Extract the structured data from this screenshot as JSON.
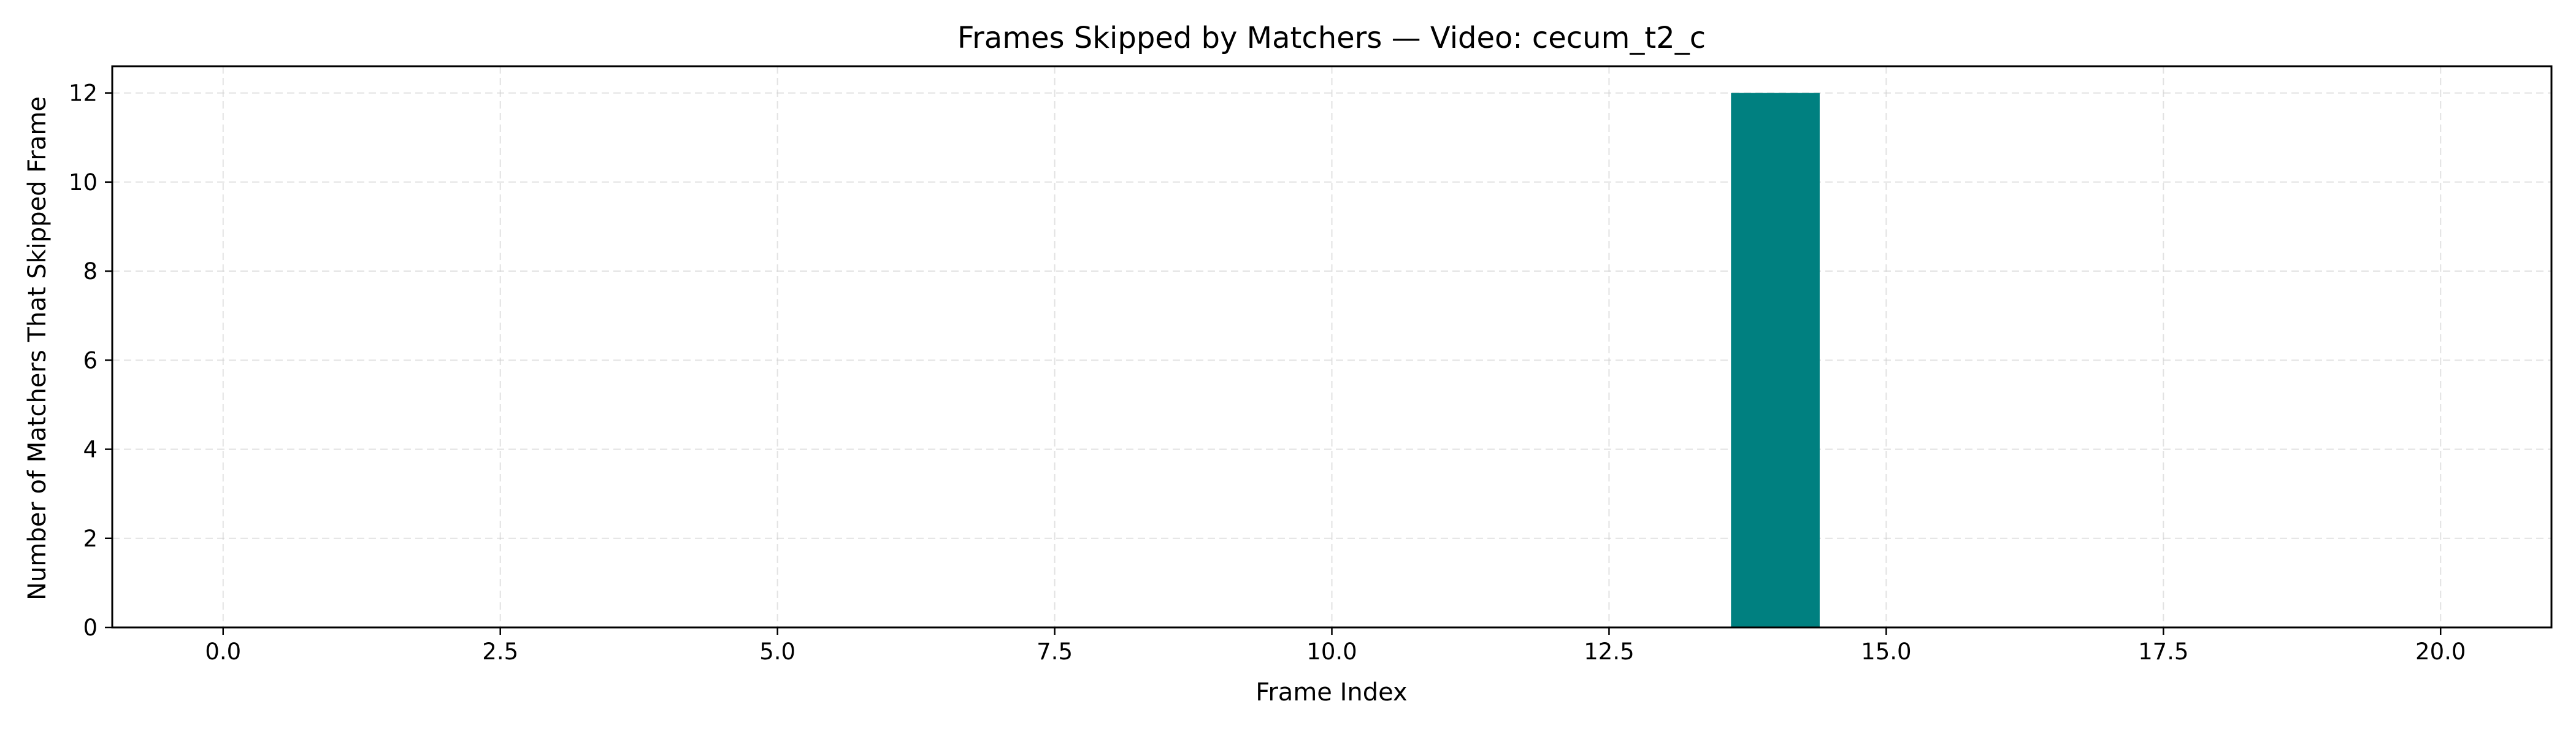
{
  "chart_data": {
    "type": "bar",
    "title": "Frames Skipped by Matchers — Video: cecum_t2_c",
    "xlabel": "Frame Index",
    "ylabel": "Number of Matchers That Skipped Frame",
    "xlim": [
      -1.0,
      21.0
    ],
    "ylim": [
      0,
      12.6
    ],
    "x_ticks": [
      0.0,
      2.5,
      5.0,
      7.5,
      10.0,
      12.5,
      15.0,
      17.5,
      20.0
    ],
    "x_tick_labels": [
      "0.0",
      "2.5",
      "5.0",
      "7.5",
      "10.0",
      "12.5",
      "15.0",
      "17.5",
      "20.0"
    ],
    "y_ticks": [
      0,
      2,
      4,
      6,
      8,
      10,
      12
    ],
    "y_tick_labels": [
      "0",
      "2",
      "4",
      "6",
      "8",
      "10",
      "12"
    ],
    "bar_width": 0.8,
    "grid": true,
    "legend": "none",
    "color": "#008080",
    "x": [
      14
    ],
    "values": [
      12
    ]
  }
}
